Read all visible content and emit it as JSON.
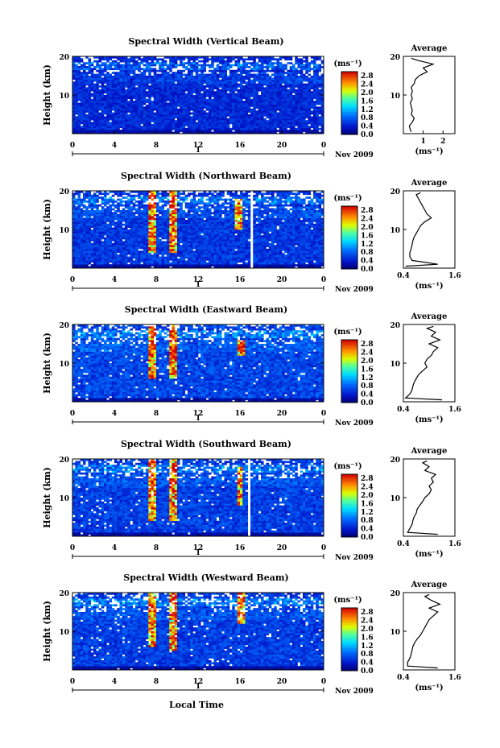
{
  "figure": {
    "x_caption": "Local Time",
    "date_label": "Nov 2009",
    "day_marker": "1",
    "ylabel": "Height (km)",
    "cbar_unit": "(ms⁻¹)",
    "avg_title": "Average",
    "avg_xlabel": "(ms⁻¹)"
  },
  "chart_data": [
    {
      "type": "heatmap",
      "title": "Spectral Width (Vertical Beam)",
      "xlabel": "Local Time",
      "ylabel": "Height (km)",
      "x_ticks": [
        "0",
        "4",
        "8",
        "12",
        "16",
        "20",
        "0"
      ],
      "xlim": [
        0,
        24
      ],
      "y_ticks": [
        "10",
        "20"
      ],
      "ylim": [
        0,
        20
      ],
      "colorbar": {
        "label": "(ms⁻¹)",
        "ticks": [
          "0.0",
          "0.4",
          "0.8",
          "1.2",
          "1.6",
          "2.0",
          "2.4",
          "2.8"
        ],
        "range": [
          0,
          3.0
        ]
      },
      "gaps": [
        [
          16.9,
          17.1
        ]
      ],
      "features": [],
      "background_level": 0.55,
      "profile": {
        "xlim": [
          0,
          2.6
        ],
        "x_ticks": [
          "1",
          "2"
        ],
        "x_tick_values": [
          1,
          2
        ],
        "heights": [
          0.5,
          1,
          2,
          3,
          4,
          5,
          6,
          7,
          8,
          9,
          10,
          11,
          12,
          13,
          14,
          15,
          16,
          17,
          18,
          19,
          19.5
        ],
        "values": [
          0.4,
          0.35,
          0.3,
          0.45,
          0.55,
          0.4,
          0.45,
          0.4,
          0.35,
          0.45,
          0.4,
          0.45,
          0.4,
          0.55,
          0.6,
          0.8,
          1.2,
          1.0,
          1.5,
          0.7,
          0.4
        ]
      }
    },
    {
      "type": "heatmap",
      "title": "Spectral Width (Northward Beam)",
      "xlabel": "Local Time",
      "ylabel": "Height (km)",
      "x_ticks": [
        "0",
        "4",
        "8",
        "12",
        "16",
        "20",
        "0"
      ],
      "xlim": [
        0,
        24
      ],
      "y_ticks": [
        "10",
        "20"
      ],
      "ylim": [
        0,
        20
      ],
      "colorbar": {
        "label": "(ms⁻¹)",
        "ticks": [
          "0.0",
          "0.4",
          "0.8",
          "1.2",
          "1.6",
          "2.0",
          "2.4",
          "2.8"
        ],
        "range": [
          0,
          3.0
        ]
      },
      "gaps": [
        [
          17.0,
          17.2
        ]
      ],
      "features": [
        [
          7.6,
          4,
          20
        ],
        [
          9.7,
          4,
          20
        ],
        [
          15.8,
          10,
          18
        ]
      ],
      "background_level": 0.65,
      "profile": {
        "xlim": [
          0.4,
          1.6
        ],
        "x_ticks": [
          "0.4",
          "1.6"
        ],
        "x_tick_values": [
          0.4,
          1.6
        ],
        "heights": [
          0.5,
          1,
          2,
          3,
          4,
          5,
          6,
          7,
          8,
          9,
          10,
          11,
          12,
          13,
          14,
          15,
          16,
          17,
          18,
          19,
          19.5
        ],
        "values": [
          0.45,
          1.2,
          0.6,
          0.55,
          0.55,
          0.58,
          0.6,
          0.62,
          0.65,
          0.7,
          0.75,
          0.8,
          0.9,
          1.05,
          0.95,
          0.9,
          0.85,
          0.8,
          0.75,
          0.7,
          0.8
        ]
      }
    },
    {
      "type": "heatmap",
      "title": "Spectral Width (Eastward Beam)",
      "xlabel": "Local Time",
      "ylabel": "Height (km)",
      "x_ticks": [
        "0",
        "4",
        "8",
        "12",
        "16",
        "20",
        "0"
      ],
      "xlim": [
        0,
        24
      ],
      "y_ticks": [
        "10",
        "20"
      ],
      "ylim": [
        0,
        20
      ],
      "colorbar": {
        "label": "(ms⁻¹)",
        "ticks": [
          "0.0",
          "0.4",
          "0.8",
          "1.2",
          "1.6",
          "2.0",
          "2.4",
          "2.8"
        ],
        "range": [
          0,
          3.0
        ]
      },
      "gaps": [
        [
          16.9,
          17.1
        ]
      ],
      "features": [
        [
          7.6,
          6,
          20
        ],
        [
          9.7,
          6,
          20
        ],
        [
          16.2,
          12,
          16
        ]
      ],
      "background_level": 0.75,
      "profile": {
        "xlim": [
          0.4,
          1.6
        ],
        "x_ticks": [
          "0.4",
          "1.6"
        ],
        "x_tick_values": [
          0.4,
          1.6
        ],
        "heights": [
          0.5,
          1,
          2,
          3,
          4,
          5,
          6,
          7,
          8,
          9,
          10,
          11,
          12,
          13,
          14,
          15,
          16,
          17,
          18,
          19,
          19.5
        ],
        "values": [
          1.3,
          0.45,
          0.55,
          0.6,
          0.62,
          0.65,
          0.7,
          0.75,
          0.85,
          0.95,
          0.9,
          0.95,
          1.05,
          1.1,
          1.2,
          1.0,
          1.25,
          1.05,
          1.15,
          0.95,
          1.1
        ]
      }
    },
    {
      "type": "heatmap",
      "title": "Spectral Width (Southward Beam)",
      "xlabel": "Local Time",
      "ylabel": "Height (km)",
      "x_ticks": [
        "0",
        "4",
        "8",
        "12",
        "16",
        "20",
        "0"
      ],
      "xlim": [
        0,
        24
      ],
      "y_ticks": [
        "10",
        "20"
      ],
      "ylim": [
        0,
        20
      ],
      "colorbar": {
        "label": "(ms⁻¹)",
        "ticks": [
          "0.0",
          "0.4",
          "0.8",
          "1.2",
          "1.6",
          "2.0",
          "2.4",
          "2.8"
        ],
        "range": [
          0,
          3.0
        ]
      },
      "gaps": [
        [
          16.8,
          17.0
        ]
      ],
      "features": [
        [
          7.6,
          4,
          20
        ],
        [
          9.7,
          4,
          20
        ],
        [
          16.0,
          8,
          18
        ]
      ],
      "background_level": 0.7,
      "profile": {
        "xlim": [
          0.4,
          1.6
        ],
        "x_ticks": [
          "0.4",
          "1.6"
        ],
        "x_tick_values": [
          0.4,
          1.6
        ],
        "heights": [
          0.5,
          1,
          2,
          3,
          4,
          5,
          6,
          7,
          8,
          9,
          10,
          11,
          12,
          13,
          14,
          15,
          16,
          17,
          18,
          19,
          19.5
        ],
        "values": [
          1.2,
          0.5,
          0.55,
          0.6,
          0.62,
          0.65,
          0.7,
          0.72,
          0.78,
          0.85,
          0.9,
          1.0,
          1.05,
          1.0,
          1.1,
          1.05,
          1.15,
          0.9,
          1.0,
          0.85,
          0.95
        ]
      }
    },
    {
      "type": "heatmap",
      "title": "Spectral Width (Westward Beam)",
      "xlabel": "Local Time",
      "ylabel": "Height (km)",
      "x_ticks": [
        "0",
        "4",
        "8",
        "12",
        "16",
        "20",
        "0"
      ],
      "xlim": [
        0,
        24
      ],
      "y_ticks": [
        "10",
        "20"
      ],
      "ylim": [
        0,
        20
      ],
      "colorbar": {
        "label": "(ms⁻¹)",
        "ticks": [
          "0.0",
          "0.4",
          "0.8",
          "1.2",
          "1.6",
          "2.0",
          "2.4",
          "2.8"
        ],
        "range": [
          0,
          3.0
        ]
      },
      "gaps": [
        [
          16.9,
          17.1
        ]
      ],
      "features": [
        [
          7.6,
          6,
          20
        ],
        [
          9.7,
          5,
          20
        ],
        [
          16.2,
          12,
          20
        ]
      ],
      "background_level": 0.7,
      "profile": {
        "xlim": [
          0.4,
          1.6
        ],
        "x_ticks": [
          "0.4",
          "1.6"
        ],
        "x_tick_values": [
          0.4,
          1.6
        ],
        "heights": [
          0.5,
          1,
          2,
          3,
          4,
          5,
          6,
          7,
          8,
          9,
          10,
          11,
          12,
          13,
          14,
          15,
          16,
          17,
          18,
          19,
          19.5
        ],
        "values": [
          1.2,
          0.5,
          0.5,
          0.55,
          0.58,
          0.6,
          0.62,
          0.66,
          0.72,
          0.8,
          0.85,
          0.9,
          0.95,
          1.0,
          1.1,
          1.2,
          1.0,
          1.25,
          1.05,
          0.9,
          1.0
        ]
      }
    }
  ]
}
